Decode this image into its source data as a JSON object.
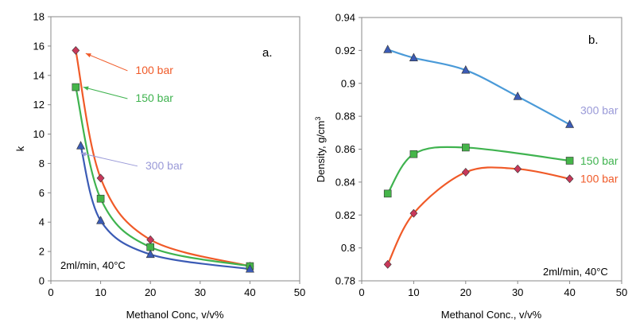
{
  "chart_data": [
    {
      "type": "line",
      "panel_label": "a.",
      "xlabel": "Methanol Conc, v/v%",
      "ylabel": "k",
      "xlim": [
        0,
        50
      ],
      "ylim": [
        0,
        18
      ],
      "x_ticks": [
        0,
        10,
        20,
        30,
        40,
        50
      ],
      "y_ticks": [
        0,
        2,
        4,
        6,
        8,
        10,
        12,
        14,
        16,
        18
      ],
      "annotation": "2ml/min, 40°C",
      "grid": false,
      "series": [
        {
          "name": "100 bar",
          "color": "#f05a28",
          "marker": "diamond",
          "marker_color": "#c8385a",
          "x": [
            5,
            10,
            20,
            40
          ],
          "y": [
            15.7,
            7.0,
            2.8,
            1.0
          ]
        },
        {
          "name": "150 bar",
          "color": "#3fb34f",
          "marker": "square",
          "marker_color": "#45b549",
          "x": [
            5,
            10,
            20,
            40
          ],
          "y": [
            13.2,
            5.6,
            2.3,
            1.0
          ]
        },
        {
          "name": "300 bar",
          "color": "#3b5bb5",
          "marker": "triangle",
          "marker_color": "#3b5bb5",
          "x": [
            6,
            10,
            20,
            40
          ],
          "y": [
            9.2,
            4.1,
            1.8,
            0.8
          ]
        }
      ],
      "labels": [
        {
          "text": "100 bar",
          "color": "#f05a28",
          "x": 17,
          "y": 14.1,
          "arrow_to": [
            7,
            15.5
          ]
        },
        {
          "text": "150 bar",
          "color": "#3fb34f",
          "x": 17,
          "y": 12.2,
          "arrow_to": [
            6.5,
            13.2
          ]
        },
        {
          "text": "300 bar",
          "color": "#9a9ad8",
          "x": 19,
          "y": 7.6,
          "arrow_to": [
            6,
            8.7
          ]
        }
      ]
    },
    {
      "type": "line",
      "panel_label": "b.",
      "xlabel": "Methanol Conc., v/v%",
      "ylabel": "Density, g/cm",
      "ylabel_sup": "3",
      "xlim": [
        0,
        50
      ],
      "ylim": [
        0.78,
        0.94
      ],
      "x_ticks": [
        0,
        10,
        20,
        30,
        40,
        50
      ],
      "y_ticks": [
        "0.78",
        "0.8",
        "0.82",
        "0.84",
        "0.86",
        "0.88",
        "0.9",
        "0.92",
        "0.94"
      ],
      "annotation": "2ml/min, 40°C",
      "grid": false,
      "series": [
        {
          "name": "300 bar",
          "color": "#4a9ad8",
          "marker": "triangle",
          "marker_color": "#3b5bb5",
          "x": [
            5,
            10,
            20,
            30,
            40
          ],
          "y": [
            0.9205,
            0.9155,
            0.908,
            0.892,
            0.875
          ]
        },
        {
          "name": "150 bar",
          "color": "#3fb34f",
          "marker": "square",
          "marker_color": "#45b549",
          "x": [
            5,
            10,
            20,
            40
          ],
          "y": [
            0.833,
            0.857,
            0.861,
            0.853
          ]
        },
        {
          "name": "100 bar",
          "color": "#f05a28",
          "marker": "diamond",
          "marker_color": "#c8385a",
          "x": [
            5,
            10,
            20,
            30,
            40
          ],
          "y": [
            0.79,
            0.821,
            0.846,
            0.848,
            0.842
          ]
        }
      ],
      "labels": [
        {
          "text": "300 bar",
          "color": "#9a9ad8"
        },
        {
          "text": "150 bar",
          "color": "#3fb34f"
        },
        {
          "text": "100 bar",
          "color": "#f05a28"
        }
      ]
    }
  ]
}
